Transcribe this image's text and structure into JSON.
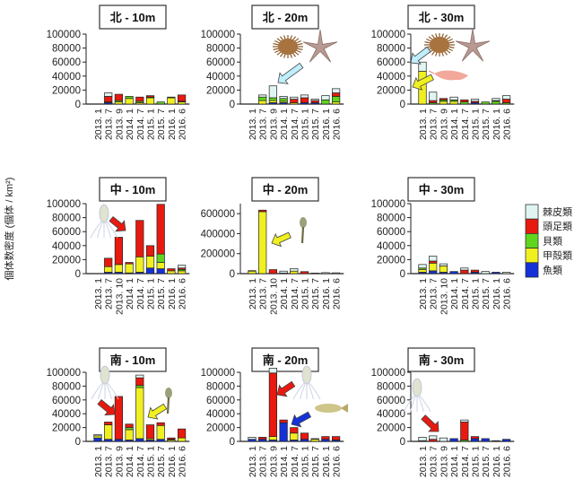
{
  "chart_data": {
    "type": "bar",
    "stacked": true,
    "ylabel": "個体数密度 (個体 / km²)",
    "legend": {
      "placement": "right",
      "entries": [
        "棘皮類",
        "頭足類",
        "貝類",
        "甲殻類",
        "魚類"
      ]
    },
    "series_order_bottom_to_top": [
      "魚類",
      "甲殻類",
      "貝類",
      "頭足類",
      "棘皮類"
    ],
    "colors": {
      "魚類": "#1432d8",
      "甲殻類": "#f0f020",
      "貝類": "#5fd61e",
      "頭足類": "#e8190f",
      "棘皮類": "#e0f5f2"
    },
    "panels": [
      {
        "title": "北 - 10m",
        "ylim": [
          0,
          100000
        ],
        "yticks": [
          "0",
          "20000",
          "40000",
          "60000",
          "80000",
          "100000"
        ],
        "categories": [
          "2013. 1",
          "2013. 7",
          "2013. 9",
          "2014. 1",
          "2014. 7",
          "2015. 1",
          "2015. 7",
          "2016. 1",
          "2016. 6"
        ],
        "series": {
          "魚類": [
            0,
            2000,
            0,
            0,
            0,
            0,
            0,
            0,
            0
          ],
          "甲殻類": [
            0,
            0,
            3000,
            8000,
            2000,
            9000,
            0,
            9000,
            3000
          ],
          "貝類": [
            0,
            1000,
            2000,
            3000,
            2000,
            1000,
            3000,
            1000,
            1000
          ],
          "頭足類": [
            0,
            8000,
            9000,
            0,
            6000,
            2000,
            0,
            0,
            9000
          ],
          "棘皮類": [
            0,
            5000,
            0,
            0,
            0,
            0,
            0,
            0,
            0
          ]
        }
      },
      {
        "title": "北 - 20m",
        "ylim": [
          0,
          100000
        ],
        "yticks": [
          "0",
          "20000",
          "40000",
          "60000",
          "80000",
          "100000"
        ],
        "categories": [
          "2013. 1",
          "2013. 7",
          "2013. 9",
          "2014. 1",
          "2014. 7",
          "2015. 1",
          "2015. 7",
          "2016. 1",
          "2016. 6"
        ],
        "series": {
          "魚類": [
            0,
            0,
            2000,
            2000,
            0,
            2000,
            2000,
            0,
            0
          ],
          "甲殻類": [
            0,
            5000,
            3000,
            2000,
            2000,
            0,
            0,
            0,
            3000
          ],
          "貝類": [
            0,
            5000,
            4000,
            4000,
            0,
            0,
            0,
            6000,
            8000
          ],
          "頭足類": [
            0,
            0,
            0,
            0,
            5000,
            7000,
            3000,
            0,
            5000
          ],
          "棘皮類": [
            0,
            3000,
            17000,
            3000,
            3000,
            4000,
            2000,
            6000,
            6000
          ]
        }
      },
      {
        "title": "北 - 30m",
        "ylim": [
          0,
          100000
        ],
        "yticks": [
          "0",
          "20000",
          "40000",
          "60000",
          "80000",
          "100000"
        ],
        "categories": [
          "2013. 1",
          "2013. 7",
          "2013. 9",
          "2014. 1",
          "2014. 7",
          "2015. 1",
          "2015. 7",
          "2016. 1",
          "2016. 6"
        ],
        "series": {
          "魚類": [
            0,
            0,
            0,
            0,
            0,
            2000,
            0,
            0,
            0
          ],
          "甲殻類": [
            47000,
            0,
            4000,
            4000,
            0,
            0,
            0,
            0,
            0
          ],
          "貝類": [
            0,
            2000,
            2000,
            2000,
            3000,
            0,
            3000,
            4000,
            2000
          ],
          "頭足類": [
            0,
            3000,
            2000,
            0,
            3000,
            2000,
            0,
            1000,
            5000
          ],
          "棘皮類": [
            13000,
            12000,
            0,
            4000,
            0,
            3000,
            0,
            3000,
            5000
          ]
        }
      },
      {
        "title": "中 - 10m",
        "ylim": [
          0,
          100000
        ],
        "yticks": [
          "0",
          "20000",
          "40000",
          "60000",
          "80000",
          "100000"
        ],
        "categories": [
          "2013. 1",
          "2013. 7",
          "2013. 10",
          "2014. 1",
          "2014. 7",
          "2015. 1",
          "2015. 7",
          "2016. 1",
          "2016. 6"
        ],
        "series": {
          "魚類": [
            0,
            2000,
            2000,
            1000,
            2000,
            8000,
            7000,
            0,
            0
          ],
          "甲殻類": [
            0,
            8000,
            11000,
            13000,
            22000,
            17000,
            9000,
            4000,
            4000
          ],
          "貝類": [
            0,
            0,
            0,
            0,
            0,
            0,
            12000,
            0,
            2000
          ],
          "頭足類": [
            0,
            12000,
            39000,
            2000,
            52000,
            15000,
            71000,
            3000,
            2000
          ],
          "棘皮類": [
            0,
            0,
            0,
            0,
            0,
            0,
            0,
            0,
            4000
          ]
        }
      },
      {
        "title": "中 - 20m",
        "ylim": [
          0,
          700000
        ],
        "yticks": [
          "0",
          "200000",
          "400000",
          "600000"
        ],
        "categories": [
          "2013. 1",
          "2013. 7",
          "2013. 10",
          "2014. 1",
          "2014. 7",
          "2015. 1",
          "2015. 7",
          "2016. 1",
          "2016. 6"
        ],
        "series": {
          "魚類": [
            0,
            0,
            0,
            5000,
            0,
            0,
            0,
            0,
            0
          ],
          "甲殻類": [
            25000,
            620000,
            0,
            0,
            25000,
            0,
            0,
            0,
            0
          ],
          "貝類": [
            0,
            0,
            0,
            0,
            0,
            0,
            0,
            0,
            0
          ],
          "頭足類": [
            5000,
            15000,
            40000,
            0,
            0,
            20000,
            0,
            0,
            0
          ],
          "棘皮類": [
            0,
            0,
            0,
            20000,
            25000,
            0,
            5000,
            10000,
            8000
          ]
        }
      },
      {
        "title": "中 - 30m",
        "ylim": [
          0,
          100000
        ],
        "yticks": [
          "0",
          "20000",
          "40000",
          "60000",
          "80000",
          "100000"
        ],
        "categories": [
          "2013. 1",
          "2013. 7",
          "2013. 10",
          "2014. 1",
          "2014. 7",
          "2015. 1",
          "2015. 7",
          "2016. 1",
          "2016. 6"
        ],
        "series": {
          "魚類": [
            2000,
            4000,
            2000,
            3000,
            0,
            2000,
            0,
            2000,
            0
          ],
          "甲殻類": [
            4000,
            11000,
            9000,
            0,
            0,
            0,
            0,
            0,
            0
          ],
          "貝類": [
            2000,
            0,
            0,
            0,
            0,
            0,
            0,
            0,
            0
          ],
          "頭足類": [
            0,
            3000,
            0,
            0,
            5000,
            3000,
            0,
            0,
            0
          ],
          "棘皮類": [
            5000,
            7000,
            3000,
            0,
            3000,
            0,
            3000,
            0,
            2000
          ]
        }
      },
      {
        "title": "南 - 10m",
        "ylim": [
          0,
          100000
        ],
        "yticks": [
          "0",
          "20000",
          "40000",
          "60000",
          "80000",
          "100000"
        ],
        "categories": [
          "2013. 1",
          "2013. 7",
          "2013. 9",
          "2014. 1",
          "2014. 7",
          "2015. 1",
          "2015. 7",
          "2016. 1",
          "2016. 6"
        ],
        "series": {
          "魚類": [
            5000,
            3000,
            3000,
            2000,
            4000,
            2000,
            3000,
            0,
            0
          ],
          "甲殻類": [
            3000,
            21000,
            0,
            15000,
            74000,
            2000,
            20000,
            2000,
            5000
          ],
          "貝類": [
            0,
            0,
            0,
            3000,
            3000,
            0,
            0,
            1000,
            0
          ],
          "頭足類": [
            0,
            4000,
            62000,
            5000,
            11000,
            20000,
            4000,
            2000,
            13000
          ],
          "棘皮類": [
            2000,
            0,
            0,
            0,
            4000,
            0,
            0,
            0,
            0
          ]
        }
      },
      {
        "title": "南 - 20m",
        "ylim": [
          0,
          100000
        ],
        "yticks": [
          "0",
          "20000",
          "40000",
          "60000",
          "80000",
          "100000"
        ],
        "categories": [
          "2013. 1",
          "2013. 7",
          "2013. 9",
          "2014. 1",
          "2014. 7",
          "2015. 1",
          "2015. 7",
          "2016. 1",
          "2016. 6"
        ],
        "series": {
          "魚類": [
            3000,
            3000,
            2000,
            27000,
            2000,
            3000,
            0,
            3000,
            2000
          ],
          "甲殻類": [
            0,
            0,
            5000,
            0,
            10000,
            0,
            3000,
            0,
            0
          ],
          "貝類": [
            0,
            0,
            0,
            0,
            0,
            0,
            0,
            0,
            0
          ],
          "頭足類": [
            0,
            3000,
            92000,
            4000,
            8000,
            9000,
            0,
            4000,
            5000
          ],
          "棘皮類": [
            3000,
            0,
            7000,
            0,
            0,
            0,
            1000,
            0,
            0
          ]
        }
      },
      {
        "title": "南 - 30m",
        "ylim": [
          0,
          100000
        ],
        "yticks": [
          "0",
          "20000",
          "40000",
          "60000",
          "80000",
          "100000"
        ],
        "categories": [
          "2013. 1",
          "2013. 7",
          "2013. 9",
          "2014. 1",
          "2014. 7",
          "2015. 1",
          "2015. 7",
          "2016. 1",
          "2016. 6"
        ],
        "series": {
          "魚類": [
            0,
            0,
            0,
            4000,
            0,
            4000,
            4000,
            1000,
            3000
          ],
          "甲殻類": [
            0,
            0,
            0,
            0,
            0,
            0,
            0,
            0,
            0
          ],
          "貝類": [
            0,
            0,
            0,
            0,
            2000,
            0,
            0,
            0,
            0
          ],
          "頭足類": [
            1000,
            3000,
            0,
            0,
            26000,
            3000,
            0,
            0,
            0
          ],
          "棘皮類": [
            5000,
            5000,
            5000,
            0,
            3000,
            0,
            0,
            0,
            0
          ]
        }
      }
    ],
    "annotations": [
      {
        "panel": "北 - 20m",
        "pictures": [
          "sea-urchin",
          "starfish"
        ],
        "arrow_color": "#bfeefc",
        "points_to": "2013. 9"
      },
      {
        "panel": "北 - 30m",
        "pictures": [
          "sea-urchin",
          "starfish",
          "shrimp"
        ],
        "arrow_colors": [
          "#bfeefc",
          "#f0f020"
        ],
        "points_to": "2013. 1"
      },
      {
        "panel": "中 - 10m",
        "pictures": [
          "squid"
        ],
        "arrow_color": "#e8190f",
        "points_to": "2013. 10"
      },
      {
        "panel": "中 - 20m",
        "pictures": [
          "crustacean-larva"
        ],
        "arrow_color": "#f0f020",
        "points_to": "2013. 7"
      },
      {
        "panel": "南 - 10m",
        "pictures": [
          "squid",
          "crustacean-larva"
        ],
        "arrow_colors": [
          "#e8190f",
          "#f0f020"
        ],
        "points_to": [
          "2013. 9",
          "2014. 7"
        ]
      },
      {
        "panel": "南 - 20m",
        "pictures": [
          "squid",
          "fish"
        ],
        "arrow_colors": [
          "#e8190f",
          "#1432d8"
        ],
        "points_to": [
          "2013. 9",
          "2014. 1"
        ]
      },
      {
        "panel": "南 - 30m",
        "pictures": [
          "squid"
        ],
        "arrow_color": "#e8190f",
        "points_to": "2014. 7"
      }
    ]
  }
}
